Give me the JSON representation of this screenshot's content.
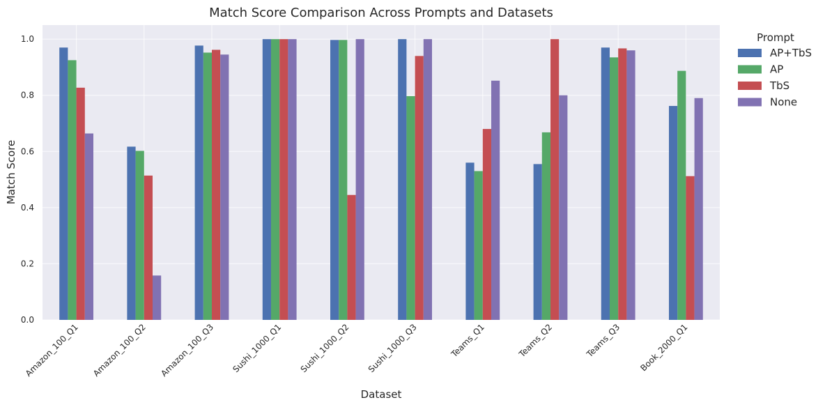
{
  "chart_data": {
    "type": "bar",
    "title": "Match Score Comparison Across Prompts and Datasets",
    "xlabel": "Dataset",
    "ylabel": "Match Score",
    "ylim": [
      0,
      1.05
    ],
    "yticks": [
      0.0,
      0.2,
      0.4,
      0.6,
      0.8,
      1.0
    ],
    "ytick_labels": [
      "0.0",
      "0.2",
      "0.4",
      "0.6",
      "0.8",
      "1.0"
    ],
    "grid": true,
    "legend_title": "Prompt",
    "legend_position": "outside-top-right",
    "categories": [
      "Amazon_100_Q1",
      "Amazon_100_Q2",
      "Amazon_100_Q3",
      "Sushi_1000_Q1",
      "Sushi_1000_Q2",
      "Sushi_1000_Q3",
      "Teams_Q1",
      "Teams_Q2",
      "Teams_Q3",
      "Book_2000_Q1"
    ],
    "series": [
      {
        "name": "AP+TbS",
        "color": "#4c72b0",
        "values": [
          0.97,
          0.617,
          0.977,
          1.0,
          0.997,
          1.0,
          0.56,
          0.555,
          0.97,
          0.762
        ]
      },
      {
        "name": "AP",
        "color": "#55a868",
        "values": [
          0.925,
          0.602,
          0.952,
          1.0,
          0.997,
          0.797,
          0.53,
          0.668,
          0.935,
          0.887
        ]
      },
      {
        "name": "TbS",
        "color": "#c44e52",
        "values": [
          0.827,
          0.514,
          0.962,
          1.0,
          0.445,
          0.94,
          0.68,
          1.0,
          0.967,
          0.512
        ]
      },
      {
        "name": "None",
        "color": "#8172b2",
        "values": [
          0.664,
          0.158,
          0.945,
          1.0,
          1.0,
          1.0,
          0.852,
          0.8,
          0.96,
          0.79
        ]
      }
    ]
  }
}
